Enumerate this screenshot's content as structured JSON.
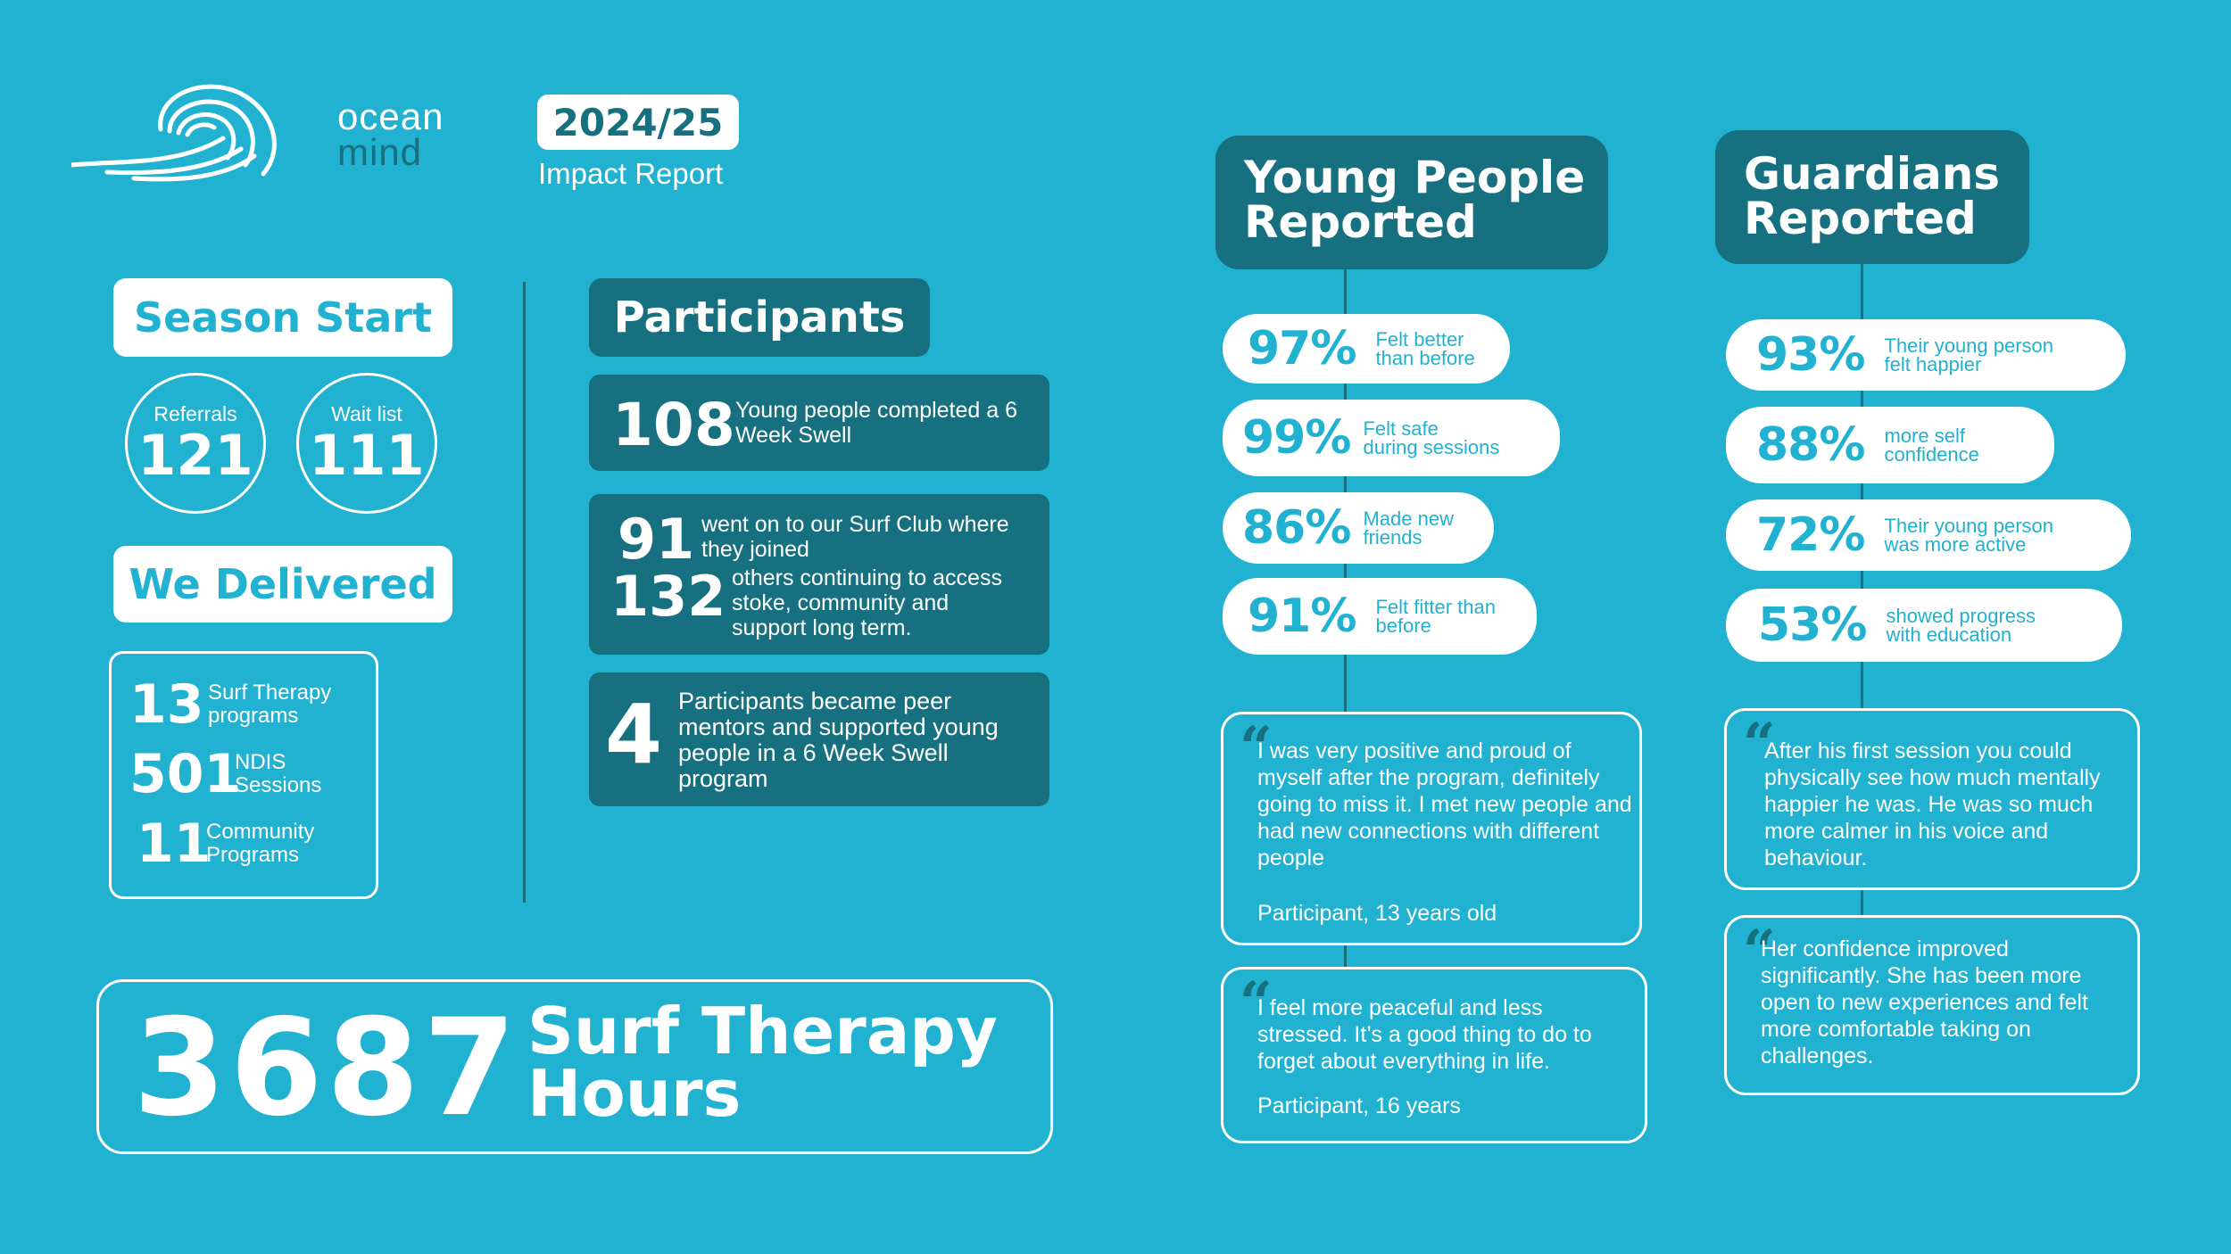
{
  "brand": {
    "name_line1": "ocean",
    "name_line2": "mind",
    "year": "2024/25",
    "report_label": "Impact Report"
  },
  "season_start": {
    "title": "Season Start",
    "referrals_label": "Referrals",
    "referrals_value": "121",
    "waitlist_label": "Wait list",
    "waitlist_value": "111"
  },
  "delivered": {
    "title": "We Delivered",
    "items": [
      {
        "value": "13",
        "label": "Surf Therapy programs"
      },
      {
        "value": "501",
        "label": "NDIS Sessions"
      },
      {
        "value": "11",
        "label": "Community Programs"
      }
    ]
  },
  "participants": {
    "title": "Participants",
    "card1": {
      "value": "108",
      "text": "Young people completed a 6 Week Swell"
    },
    "card2": {
      "value_a": "91",
      "text_a": "went on to our Surf Club where they joined",
      "value_b": "132",
      "text_b": "others continuing to access stoke, community and support long term."
    },
    "card3": {
      "value": "4",
      "text": "Participants became peer mentors and supported young people in a 6 Week Swell program"
    }
  },
  "hours": {
    "value": "3687",
    "label_line1": "Surf Therapy",
    "label_line2": "Hours"
  },
  "young_people": {
    "title_line1": "Young People",
    "title_line2": "Reported",
    "stats": [
      {
        "pct": "97%",
        "line1": "Felt better",
        "line2": "than before"
      },
      {
        "pct": "99%",
        "line1": "Felt safe",
        "line2": "during sessions"
      },
      {
        "pct": "86%",
        "line1": "Made new",
        "line2": "friends"
      },
      {
        "pct": "91%",
        "line1": "Felt fitter than",
        "line2": "before"
      }
    ],
    "quotes": [
      {
        "text": "I was very positive and proud of myself after the program, definitely going to miss it. I met new people and had new connections with different people",
        "author": "Participant, 13 years old"
      },
      {
        "text": "I feel more peaceful and less stressed. It’s a good thing to do to forget about everything in life.",
        "author": "Participant, 16 years"
      }
    ]
  },
  "guardians": {
    "title_line1": "Guardians",
    "title_line2": "Reported",
    "stats": [
      {
        "pct": "93%",
        "line1": "Their young person",
        "line2": "felt happier"
      },
      {
        "pct": "88%",
        "line1": "more self",
        "line2": "confidence"
      },
      {
        "pct": "72%",
        "line1": "Their young person",
        "line2": "was more active"
      },
      {
        "pct": "53%",
        "line1": "showed progress",
        "line2": "with education"
      }
    ],
    "quotes": [
      {
        "text": "After his first session you could physically see how much mentally happier he was. He was so much more calmer in his voice and behaviour."
      },
      {
        "text": "Her confidence improved significantly. She has been more open to new experiences and felt more comfortable taking on challenges."
      }
    ]
  },
  "colors": {
    "background": "#21B1D1",
    "dark_teal": "#17707F",
    "white": "#FFFFFF"
  }
}
